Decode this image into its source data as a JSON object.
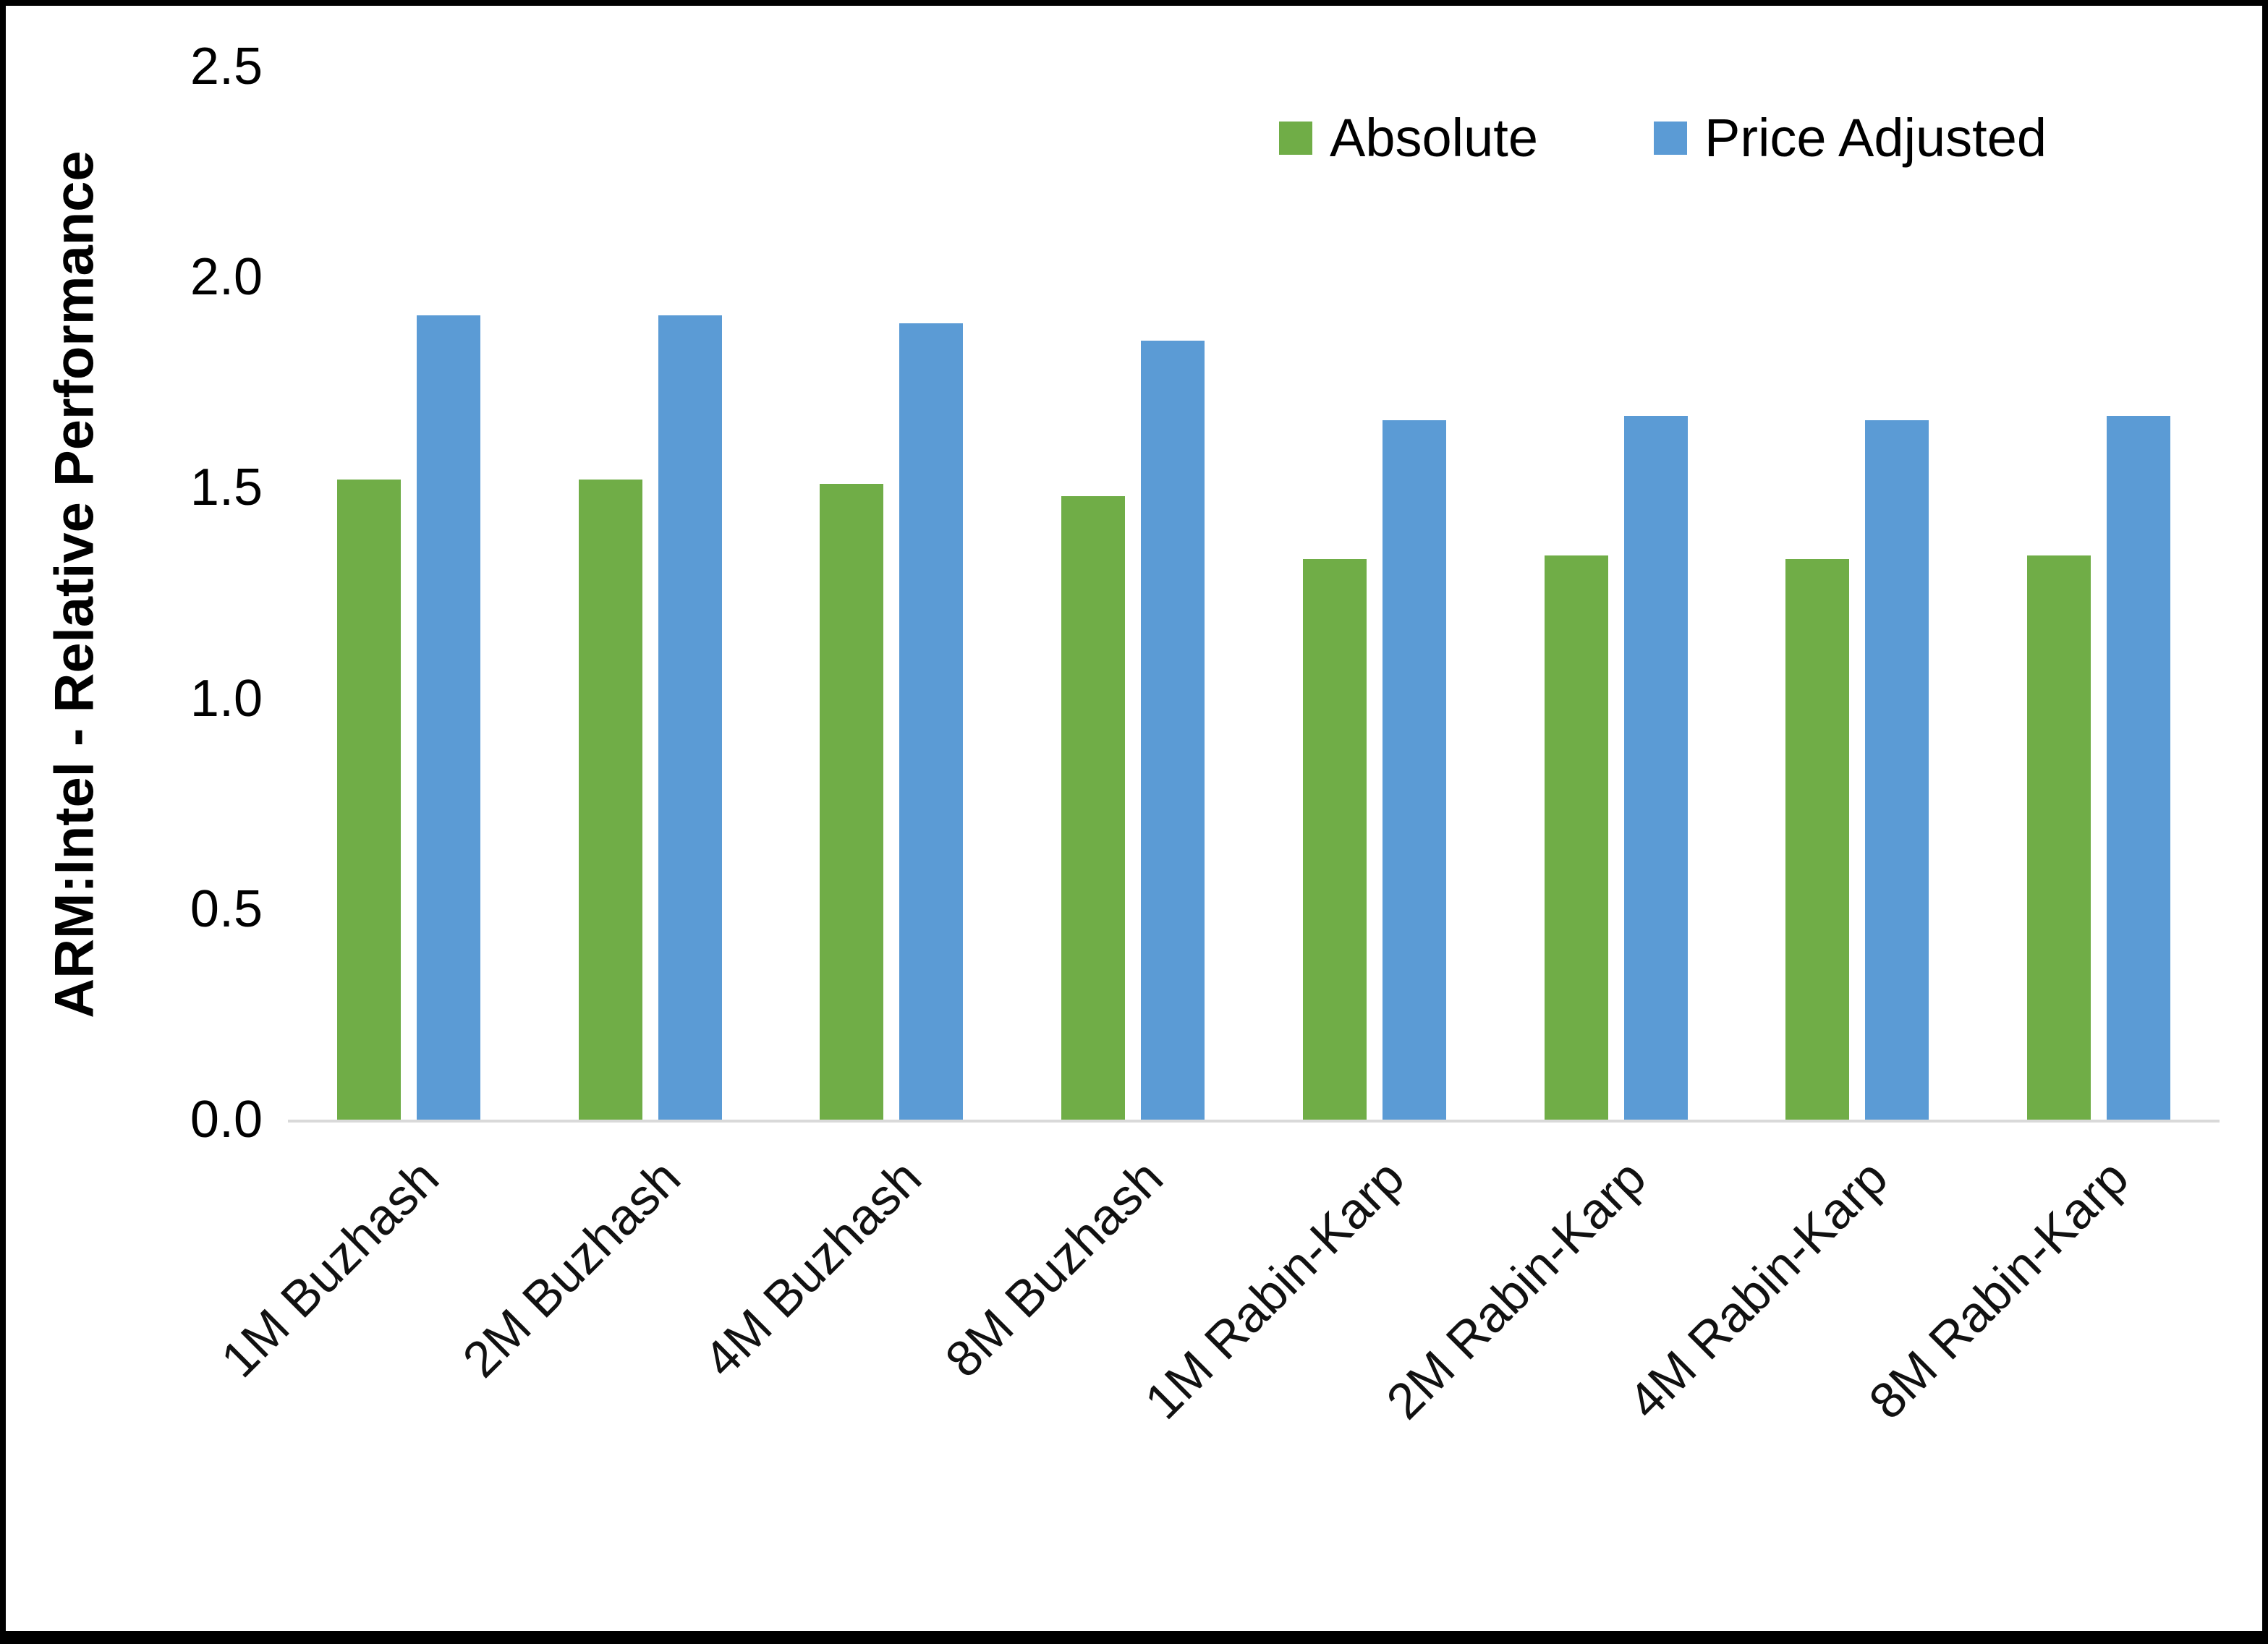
{
  "chart_data": {
    "type": "bar",
    "title": "",
    "xlabel": "",
    "ylabel": "ARM:Intel - Relative Performance",
    "ylim": [
      0,
      2.5
    ],
    "yticks": [
      "0.0",
      "0.5",
      "1.0",
      "1.5",
      "2.0",
      "2.5"
    ],
    "grid": false,
    "legend_position": "top-right",
    "categories": [
      "1M Buzhash",
      "2M Buzhash",
      "4M Buzhash",
      "8M Buzhash",
      "1M Rabin-Karp",
      "2M Rabin-Karp",
      "4M Rabin-Karp",
      "8M Rabin-Karp"
    ],
    "series": [
      {
        "name": "Absolute",
        "color": "#70AD47",
        "values": [
          1.52,
          1.52,
          1.51,
          1.48,
          1.33,
          1.34,
          1.33,
          1.34
        ]
      },
      {
        "name": "Price Adjusted",
        "color": "#5B9BD5",
        "values": [
          1.91,
          1.91,
          1.89,
          1.85,
          1.66,
          1.67,
          1.66,
          1.67
        ]
      }
    ]
  },
  "colors": {
    "background": "#ffffff",
    "border": "#000000",
    "axis_line": "#d9d9d9",
    "text": "#000000"
  }
}
